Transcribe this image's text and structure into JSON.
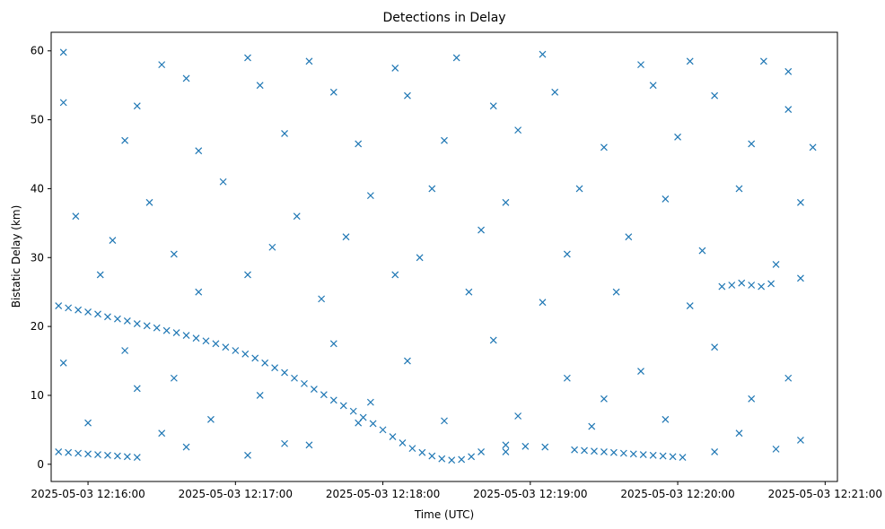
{
  "chart_data": {
    "type": "scatter",
    "title": "Detections in Delay",
    "xlabel": "Time (UTC)",
    "ylabel": "Bistatic Delay (km)",
    "date": "2025-05-03",
    "xlim": [
      "12:15:45",
      "12:21:05"
    ],
    "ylim": [
      -2.5,
      62.7
    ],
    "x_ticks": [
      "2025-05-03 12:16:00",
      "2025-05-03 12:17:00",
      "2025-05-03 12:18:00",
      "2025-05-03 12:19:00",
      "2025-05-03 12:20:00",
      "2025-05-03 12:21:00"
    ],
    "y_ticks": [
      0,
      10,
      20,
      30,
      40,
      50,
      60
    ],
    "grid": false,
    "marker": "x",
    "color": "#1f77b4",
    "series": [
      {
        "points": [
          [
            "12:15:48",
            23.0
          ],
          [
            "12:15:52",
            22.7
          ],
          [
            "12:15:56",
            22.4
          ],
          [
            "12:16:00",
            22.1
          ],
          [
            "12:16:04",
            21.8
          ],
          [
            "12:16:08",
            21.4
          ],
          [
            "12:16:12",
            21.1
          ],
          [
            "12:16:16",
            20.8
          ],
          [
            "12:16:20",
            20.4
          ],
          [
            "12:16:24",
            20.1
          ],
          [
            "12:16:28",
            19.8
          ],
          [
            "12:16:32",
            19.4
          ],
          [
            "12:16:36",
            19.1
          ],
          [
            "12:16:40",
            18.7
          ],
          [
            "12:16:44",
            18.3
          ],
          [
            "12:16:48",
            17.9
          ],
          [
            "12:16:52",
            17.5
          ],
          [
            "12:16:56",
            17.0
          ],
          [
            "12:17:00",
            16.5
          ],
          [
            "12:17:04",
            16.0
          ],
          [
            "12:17:08",
            15.4
          ],
          [
            "12:17:12",
            14.7
          ],
          [
            "12:17:16",
            14.0
          ],
          [
            "12:17:20",
            13.3
          ],
          [
            "12:17:24",
            12.5
          ],
          [
            "12:17:28",
            11.7
          ],
          [
            "12:17:32",
            10.9
          ],
          [
            "12:17:36",
            10.1
          ],
          [
            "12:17:40",
            9.3
          ],
          [
            "12:17:44",
            8.5
          ],
          [
            "12:17:48",
            7.7
          ],
          [
            "12:17:52",
            6.8
          ],
          [
            "12:17:56",
            5.9
          ],
          [
            "12:18:00",
            5.0
          ],
          [
            "12:18:04",
            4.0
          ],
          [
            "12:18:08",
            3.1
          ],
          [
            "12:18:12",
            2.3
          ],
          [
            "12:18:16",
            1.7
          ],
          [
            "12:18:20",
            1.2
          ],
          [
            "12:18:24",
            0.8
          ],
          [
            "12:18:28",
            0.6
          ],
          [
            "12:18:32",
            0.7
          ],
          [
            "12:18:36",
            1.1
          ],
          [
            "12:18:40",
            1.8
          ],
          [
            "12:15:48",
            1.8
          ],
          [
            "12:15:52",
            1.7
          ],
          [
            "12:15:56",
            1.6
          ],
          [
            "12:16:00",
            1.5
          ],
          [
            "12:16:04",
            1.4
          ],
          [
            "12:16:08",
            1.3
          ],
          [
            "12:16:12",
            1.2
          ],
          [
            "12:16:16",
            1.1
          ],
          [
            "12:16:20",
            1.0
          ],
          [
            "12:19:18",
            2.1
          ],
          [
            "12:19:22",
            2.0
          ],
          [
            "12:19:26",
            1.9
          ],
          [
            "12:19:30",
            1.8
          ],
          [
            "12:19:34",
            1.7
          ],
          [
            "12:19:38",
            1.6
          ],
          [
            "12:19:42",
            1.5
          ],
          [
            "12:19:46",
            1.4
          ],
          [
            "12:19:50",
            1.3
          ],
          [
            "12:19:54",
            1.2
          ],
          [
            "12:19:58",
            1.1
          ],
          [
            "12:20:02",
            1.0
          ],
          [
            "12:20:18",
            25.8
          ],
          [
            "12:20:22",
            26.0
          ],
          [
            "12:20:26",
            26.3
          ],
          [
            "12:20:30",
            26.0
          ],
          [
            "12:20:34",
            25.8
          ],
          [
            "12:20:38",
            26.2
          ],
          [
            "12:18:50",
            2.8
          ],
          [
            "12:18:58",
            2.6
          ],
          [
            "12:19:06",
            2.5
          ],
          [
            "12:15:50",
            59.8
          ],
          [
            "12:16:30",
            58.0
          ],
          [
            "12:16:40",
            56.0
          ],
          [
            "12:17:05",
            59.0
          ],
          [
            "12:17:30",
            58.5
          ],
          [
            "12:18:05",
            57.5
          ],
          [
            "12:18:30",
            59.0
          ],
          [
            "12:19:05",
            59.5
          ],
          [
            "12:19:45",
            58.0
          ],
          [
            "12:20:05",
            58.5
          ],
          [
            "12:20:35",
            58.5
          ],
          [
            "12:20:45",
            57.0
          ],
          [
            "12:15:50",
            52.5
          ],
          [
            "12:16:20",
            52.0
          ],
          [
            "12:17:10",
            55.0
          ],
          [
            "12:17:40",
            54.0
          ],
          [
            "12:18:10",
            53.5
          ],
          [
            "12:18:45",
            52.0
          ],
          [
            "12:19:10",
            54.0
          ],
          [
            "12:19:50",
            55.0
          ],
          [
            "12:20:15",
            53.5
          ],
          [
            "12:20:45",
            51.5
          ],
          [
            "12:16:15",
            47.0
          ],
          [
            "12:16:45",
            45.5
          ],
          [
            "12:17:20",
            48.0
          ],
          [
            "12:17:50",
            46.5
          ],
          [
            "12:18:25",
            47.0
          ],
          [
            "12:18:55",
            48.5
          ],
          [
            "12:19:30",
            46.0
          ],
          [
            "12:20:00",
            47.5
          ],
          [
            "12:20:30",
            46.5
          ],
          [
            "12:20:55",
            46.0
          ],
          [
            "12:15:55",
            36.0
          ],
          [
            "12:16:25",
            38.0
          ],
          [
            "12:16:55",
            41.0
          ],
          [
            "12:17:25",
            36.0
          ],
          [
            "12:17:55",
            39.0
          ],
          [
            "12:18:20",
            40.0
          ],
          [
            "12:18:50",
            38.0
          ],
          [
            "12:19:20",
            40.0
          ],
          [
            "12:19:55",
            38.5
          ],
          [
            "12:20:25",
            40.0
          ],
          [
            "12:20:50",
            38.0
          ],
          [
            "12:16:10",
            32.5
          ],
          [
            "12:16:35",
            30.5
          ],
          [
            "12:17:15",
            31.5
          ],
          [
            "12:17:45",
            33.0
          ],
          [
            "12:18:15",
            30.0
          ],
          [
            "12:18:40",
            34.0
          ],
          [
            "12:19:15",
            30.5
          ],
          [
            "12:19:40",
            33.0
          ],
          [
            "12:20:10",
            31.0
          ],
          [
            "12:20:40",
            29.0
          ],
          [
            "12:16:05",
            27.5
          ],
          [
            "12:16:45",
            25.0
          ],
          [
            "12:17:05",
            27.5
          ],
          [
            "12:17:35",
            24.0
          ],
          [
            "12:18:05",
            27.5
          ],
          [
            "12:18:35",
            25.0
          ],
          [
            "12:19:05",
            23.5
          ],
          [
            "12:19:35",
            25.0
          ],
          [
            "12:20:05",
            23.0
          ],
          [
            "12:20:50",
            27.0
          ],
          [
            "12:16:15",
            16.5
          ],
          [
            "12:16:35",
            12.5
          ],
          [
            "12:17:10",
            10.0
          ],
          [
            "12:17:40",
            17.5
          ],
          [
            "12:18:10",
            15.0
          ],
          [
            "12:18:45",
            18.0
          ],
          [
            "12:19:15",
            12.5
          ],
          [
            "12:19:45",
            13.5
          ],
          [
            "12:20:15",
            17.0
          ],
          [
            "12:20:45",
            12.5
          ],
          [
            "12:15:50",
            14.7
          ],
          [
            "12:16:00",
            6.0
          ],
          [
            "12:16:30",
            4.5
          ],
          [
            "12:16:50",
            6.5
          ],
          [
            "12:17:20",
            3.0
          ],
          [
            "12:17:50",
            6.0
          ],
          [
            "12:18:25",
            6.3
          ],
          [
            "12:18:55",
            7.0
          ],
          [
            "12:19:25",
            5.5
          ],
          [
            "12:19:55",
            6.5
          ],
          [
            "12:20:25",
            4.5
          ],
          [
            "12:20:50",
            3.5
          ],
          [
            "12:16:40",
            2.5
          ],
          [
            "12:17:05",
            1.3
          ],
          [
            "12:17:30",
            2.8
          ],
          [
            "12:18:50",
            1.8
          ],
          [
            "12:20:15",
            1.8
          ],
          [
            "12:20:40",
            2.2
          ],
          [
            "12:16:20",
            11.0
          ],
          [
            "12:17:55",
            9.0
          ],
          [
            "12:19:30",
            9.5
          ],
          [
            "12:20:30",
            9.5
          ]
        ]
      }
    ]
  }
}
